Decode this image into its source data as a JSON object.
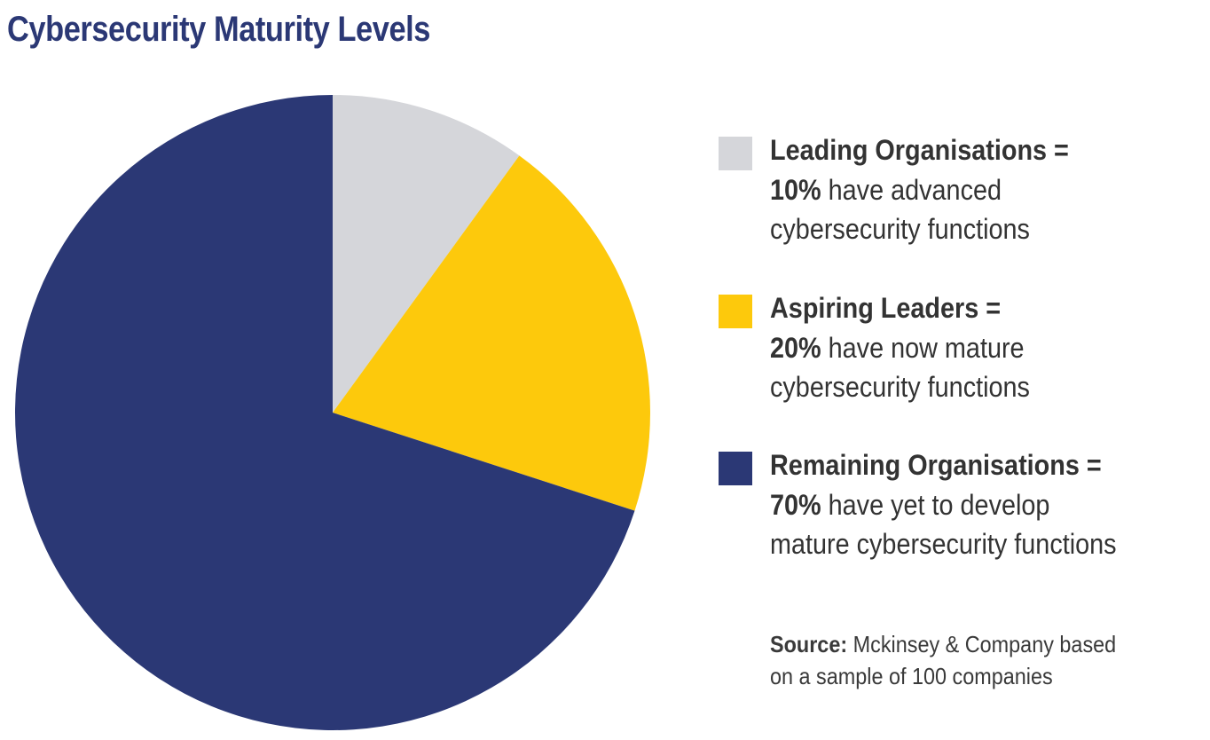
{
  "title": "Cybersecurity Maturity Levels",
  "legend": {
    "items": [
      {
        "label": "Leading Organisations =",
        "percent": "10%",
        "line2_rest": " have advanced",
        "line3": "cybersecurity functions",
        "color": "#d5d6da"
      },
      {
        "label": "Aspiring Leaders =",
        "percent": "20%",
        "line2_rest": " have now mature",
        "line3": "cybersecurity functions",
        "color": "#fdc90c"
      },
      {
        "label": "Remaining Organisations =",
        "percent": "70%",
        "line2_rest": " have yet to develop",
        "line3": "mature cybersecurity functions",
        "color": "#2b3875"
      }
    ]
  },
  "source": {
    "label": "Source:",
    "line1_rest": " Mckinsey & Company based",
    "line2": "on a sample of 100 companies"
  },
  "chart_data": {
    "type": "pie",
    "title": "Cybersecurity Maturity Levels",
    "categories": [
      "Leading Organisations",
      "Aspiring Leaders",
      "Remaining Organisations"
    ],
    "values": [
      10,
      20,
      70
    ],
    "unit": "%",
    "colors": [
      "#d5d6da",
      "#fdc90c",
      "#2b3875"
    ],
    "descriptions": [
      "10% have advanced cybersecurity functions",
      "20% have now mature cybersecurity functions",
      "70% have yet to develop mature cybersecurity functions"
    ],
    "start_angle": "12 o'clock, clockwise",
    "legend_position": "right",
    "source": "Mckinsey & Company based on a sample of 100 companies"
  }
}
